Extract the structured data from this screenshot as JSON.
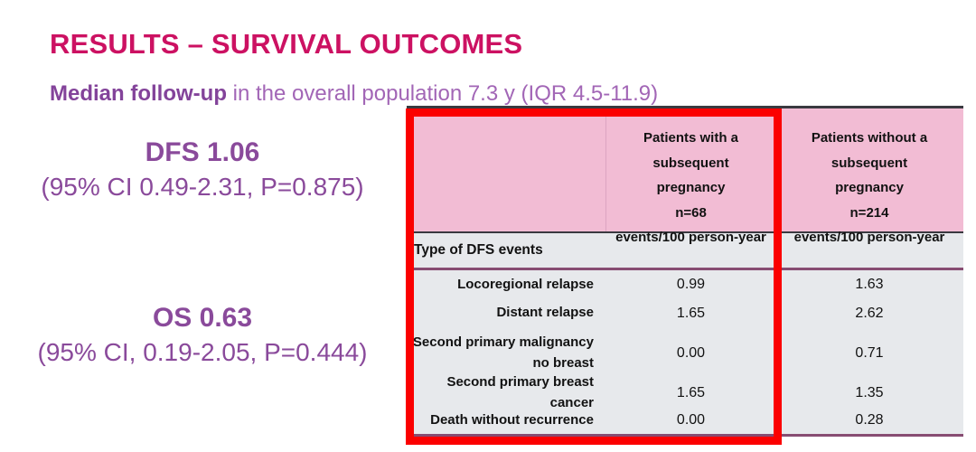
{
  "slide": {
    "title": "RESULTS – SURVIVAL OUTCOMES",
    "subtitle_bold": "Median follow-up",
    "subtitle_rest": " in the overall population 7.3 y (IQR 4.5-11.9)"
  },
  "stats": {
    "dfs_label": "DFS 1.06",
    "dfs_ci": "(95% CI 0.49-2.31, P=0.875)",
    "os_label": "OS 0.63",
    "os_ci": "(95% CI, 0.19-2.05, P=0.444)"
  },
  "table": {
    "columns": {
      "with_pregnancy": {
        "lines": [
          "Patients with a subsequent",
          "pregnancy",
          "n=68",
          "events/100 person-year"
        ]
      },
      "without_pregnancy": {
        "lines": [
          "Patients without a subsequent",
          "pregnancy",
          "n=214",
          "events/100 person-year"
        ]
      }
    },
    "section_header": "Type of DFS events",
    "rows": [
      {
        "label": "Locoregional relapse",
        "with_pregnancy": "0.99",
        "without_pregnancy": "1.63"
      },
      {
        "label": "Distant relapse",
        "with_pregnancy": "1.65",
        "without_pregnancy": "2.62"
      },
      {
        "label": "Second primary malignancy no breast",
        "with_pregnancy": "0.00",
        "without_pregnancy": "0.71"
      },
      {
        "label": "Second primary breast cancer",
        "with_pregnancy": "1.65",
        "without_pregnancy": "1.35"
      },
      {
        "label": "Death without recurrence",
        "with_pregnancy": "0.00",
        "without_pregnancy": "0.28"
      }
    ]
  },
  "colors": {
    "title_magenta": "#CC1162",
    "subtitle_purple_bold": "#83439A",
    "subtitle_purple": "#A266B6",
    "stat_purple": "#8A4A9B",
    "table_header_pink": "#F2BCD4",
    "table_body_gray": "#E7E9EC",
    "divider_dark": "#3A3A40",
    "divider_plum": "#874C72",
    "highlight_red": "#FB0000"
  }
}
